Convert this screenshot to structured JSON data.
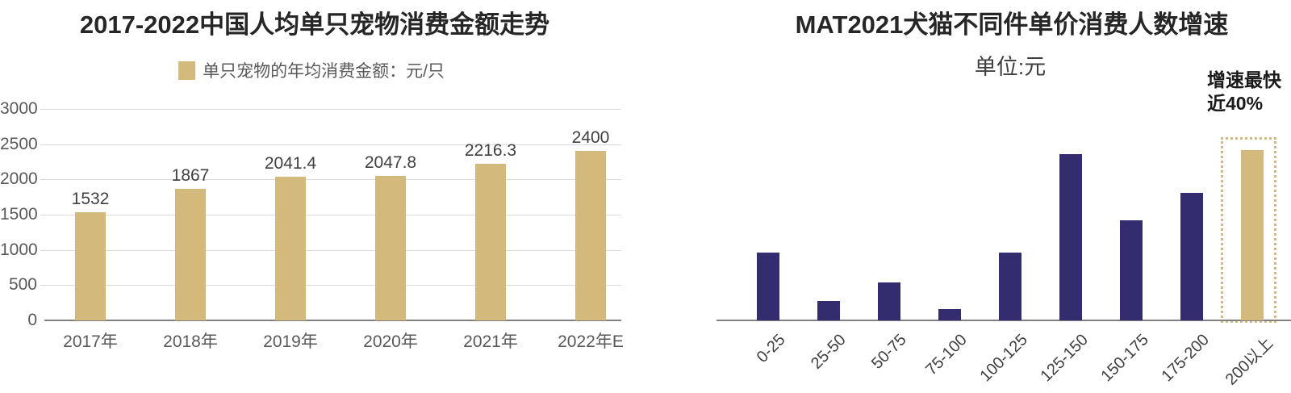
{
  "accent_colors": {
    "tan": "#d4b97d",
    "navy": "#332d70",
    "gridline": "#d9d9d9",
    "axis": "#808080"
  },
  "chart_data": [
    {
      "type": "bar",
      "title": "2017-2022中国人均单只宠物消费金额走势",
      "legend": [
        "单只宠物的年均消费金额：元/只"
      ],
      "legend_position": "top-center",
      "categories": [
        "2017年",
        "2018年",
        "2019年",
        "2020年",
        "2021年",
        "2022年E"
      ],
      "values": [
        1532,
        1867,
        2041.4,
        2047.8,
        2216.3,
        2400
      ],
      "value_labels": [
        "1532",
        "1867",
        "2041.4",
        "2047.8",
        "2216.3",
        "2400"
      ],
      "ylabel": "",
      "xlabel": "",
      "ylim": [
        0,
        3000
      ],
      "yticks": [
        0,
        500,
        1000,
        1500,
        2000,
        2500,
        3000
      ],
      "grid": true,
      "bar_color": "#d4b97d"
    },
    {
      "type": "bar",
      "title": "MAT2021犬猫不同件单价消费人数增速",
      "subtitle": "单位:元",
      "categories": [
        "0-25",
        "25-50",
        "50-75",
        "75-100",
        "100-125",
        "125-150",
        "150-175",
        "175-200",
        "200以上"
      ],
      "values": [
        16,
        4.5,
        9,
        2.7,
        16,
        39,
        23.5,
        30,
        40
      ],
      "values_note": "percent growth estimated from bar heights; only the last bar is labeled (~40%)",
      "ylabel": "",
      "xlabel": "",
      "ylim": [
        0,
        45
      ],
      "grid": false,
      "yaxis_labels_visible": false,
      "bar_color": "#332d70",
      "highlight": {
        "index": 8,
        "bar_color": "#d4b97d",
        "box_style": "dotted",
        "box_color": "#d4b97d",
        "annotation": [
          "增速最快",
          "近40%"
        ]
      }
    }
  ]
}
